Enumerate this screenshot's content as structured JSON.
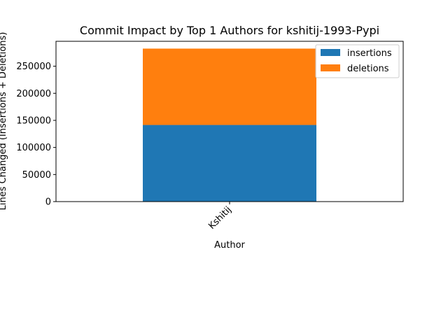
{
  "chart_data": {
    "type": "bar",
    "stacked": true,
    "title": "Commit Impact by Top 1 Authors for kshitij-1993-Pypi",
    "xlabel": "Author",
    "ylabel": "Lines Changed (Insertions + Deletions)",
    "categories": [
      "Kshitij"
    ],
    "series": [
      {
        "name": "insertions",
        "values": [
          141500
        ],
        "color": "#1f77b4"
      },
      {
        "name": "deletions",
        "values": [
          141000
        ],
        "color": "#ff7f0e"
      }
    ],
    "ylim": [
      0,
      296000
    ],
    "yticks": [
      0,
      50000,
      100000,
      150000,
      200000,
      250000
    ],
    "ytick_labels": [
      "0",
      "50000",
      "100000",
      "150000",
      "200000",
      "250000"
    ],
    "xtick_rotation": 45,
    "grid": false,
    "legend_position": "top-right"
  }
}
